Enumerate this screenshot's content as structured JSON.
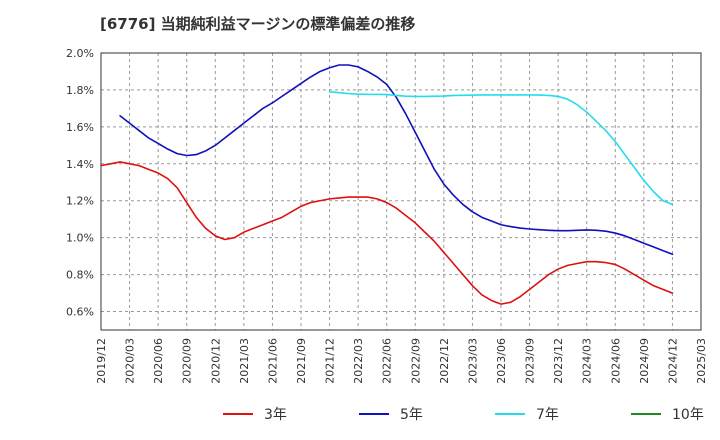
{
  "chart_data": {
    "type": "line",
    "title": "[6776]  当期純利益マージンの標準偏差の推移",
    "xlabel": "",
    "ylabel": "",
    "ylim": [
      0.5,
      2.0
    ],
    "y_ticks": [
      "0.6%",
      "0.8%",
      "1.0%",
      "1.2%",
      "1.4%",
      "1.6%",
      "1.8%",
      "2.0%"
    ],
    "y_tick_values": [
      0.6,
      0.8,
      1.0,
      1.2,
      1.4,
      1.6,
      1.8,
      2.0
    ],
    "x_ticks": [
      "2019/12",
      "2020/03",
      "2020/06",
      "2020/09",
      "2020/12",
      "2021/03",
      "2021/06",
      "2021/09",
      "2021/12",
      "2022/03",
      "2022/06",
      "2022/09",
      "2022/12",
      "2023/03",
      "2023/06",
      "2023/09",
      "2023/12",
      "2024/03",
      "2024/06",
      "2024/09",
      "2024/12",
      "2025/03"
    ],
    "grid": true,
    "legend_position": "bottom",
    "series": [
      {
        "name": "3年",
        "color": "#dd1111",
        "points": [
          [
            "2019/12",
            1.39
          ],
          [
            "2020/01",
            1.4
          ],
          [
            "2020/02",
            1.41
          ],
          [
            "2020/03",
            1.4
          ],
          [
            "2020/04",
            1.39
          ],
          [
            "2020/05",
            1.37
          ],
          [
            "2020/06",
            1.35
          ],
          [
            "2020/07",
            1.32
          ],
          [
            "2020/08",
            1.27
          ],
          [
            "2020/09",
            1.19
          ],
          [
            "2020/10",
            1.11
          ],
          [
            "2020/11",
            1.05
          ],
          [
            "2020/12",
            1.01
          ],
          [
            "2021/01",
            0.99
          ],
          [
            "2021/02",
            1.0
          ],
          [
            "2021/03",
            1.03
          ],
          [
            "2021/04",
            1.05
          ],
          [
            "2021/05",
            1.07
          ],
          [
            "2021/06",
            1.09
          ],
          [
            "2021/07",
            1.11
          ],
          [
            "2021/08",
            1.14
          ],
          [
            "2021/09",
            1.17
          ],
          [
            "2021/10",
            1.19
          ],
          [
            "2021/11",
            1.2
          ],
          [
            "2021/12",
            1.21
          ],
          [
            "2022/01",
            1.215
          ],
          [
            "2022/02",
            1.22
          ],
          [
            "2022/03",
            1.22
          ],
          [
            "2022/04",
            1.22
          ],
          [
            "2022/05",
            1.21
          ],
          [
            "2022/06",
            1.19
          ],
          [
            "2022/07",
            1.16
          ],
          [
            "2022/08",
            1.12
          ],
          [
            "2022/09",
            1.08
          ],
          [
            "2022/10",
            1.03
          ],
          [
            "2022/11",
            0.98
          ],
          [
            "2022/12",
            0.92
          ],
          [
            "2023/01",
            0.86
          ],
          [
            "2023/02",
            0.8
          ],
          [
            "2023/03",
            0.74
          ],
          [
            "2023/04",
            0.69
          ],
          [
            "2023/05",
            0.66
          ],
          [
            "2023/06",
            0.64
          ],
          [
            "2023/07",
            0.65
          ],
          [
            "2023/08",
            0.68
          ],
          [
            "2023/09",
            0.72
          ],
          [
            "2023/10",
            0.76
          ],
          [
            "2023/11",
            0.8
          ],
          [
            "2023/12",
            0.83
          ],
          [
            "2024/01",
            0.85
          ],
          [
            "2024/02",
            0.86
          ],
          [
            "2024/03",
            0.87
          ],
          [
            "2024/04",
            0.87
          ],
          [
            "2024/05",
            0.865
          ],
          [
            "2024/06",
            0.855
          ],
          [
            "2024/07",
            0.83
          ],
          [
            "2024/08",
            0.8
          ],
          [
            "2024/09",
            0.77
          ],
          [
            "2024/10",
            0.74
          ],
          [
            "2024/11",
            0.72
          ],
          [
            "2024/12",
            0.7
          ]
        ]
      },
      {
        "name": "5年",
        "color": "#1111bb",
        "points": [
          [
            "2020/02",
            1.66
          ],
          [
            "2020/03",
            1.62
          ],
          [
            "2020/04",
            1.58
          ],
          [
            "2020/05",
            1.54
          ],
          [
            "2020/06",
            1.51
          ],
          [
            "2020/07",
            1.48
          ],
          [
            "2020/08",
            1.455
          ],
          [
            "2020/09",
            1.445
          ],
          [
            "2020/10",
            1.45
          ],
          [
            "2020/11",
            1.47
          ],
          [
            "2020/12",
            1.5
          ],
          [
            "2021/01",
            1.54
          ],
          [
            "2021/02",
            1.58
          ],
          [
            "2021/03",
            1.62
          ],
          [
            "2021/04",
            1.66
          ],
          [
            "2021/05",
            1.7
          ],
          [
            "2021/06",
            1.73
          ],
          [
            "2021/07",
            1.765
          ],
          [
            "2021/08",
            1.8
          ],
          [
            "2021/09",
            1.835
          ],
          [
            "2021/10",
            1.87
          ],
          [
            "2021/11",
            1.9
          ],
          [
            "2021/12",
            1.92
          ],
          [
            "2022/01",
            1.935
          ],
          [
            "2022/02",
            1.935
          ],
          [
            "2022/03",
            1.925
          ],
          [
            "2022/04",
            1.9
          ],
          [
            "2022/05",
            1.87
          ],
          [
            "2022/06",
            1.83
          ],
          [
            "2022/07",
            1.76
          ],
          [
            "2022/08",
            1.67
          ],
          [
            "2022/09",
            1.57
          ],
          [
            "2022/10",
            1.47
          ],
          [
            "2022/11",
            1.37
          ],
          [
            "2022/12",
            1.29
          ],
          [
            "2023/01",
            1.23
          ],
          [
            "2023/02",
            1.18
          ],
          [
            "2023/03",
            1.14
          ],
          [
            "2023/04",
            1.11
          ],
          [
            "2023/05",
            1.09
          ],
          [
            "2023/06",
            1.07
          ],
          [
            "2023/07",
            1.06
          ],
          [
            "2023/08",
            1.052
          ],
          [
            "2023/09",
            1.047
          ],
          [
            "2023/10",
            1.043
          ],
          [
            "2023/11",
            1.04
          ],
          [
            "2023/12",
            1.038
          ],
          [
            "2024/01",
            1.038
          ],
          [
            "2024/02",
            1.04
          ],
          [
            "2024/03",
            1.042
          ],
          [
            "2024/04",
            1.04
          ],
          [
            "2024/05",
            1.035
          ],
          [
            "2024/06",
            1.025
          ],
          [
            "2024/07",
            1.01
          ],
          [
            "2024/08",
            0.99
          ],
          [
            "2024/09",
            0.97
          ],
          [
            "2024/10",
            0.95
          ],
          [
            "2024/11",
            0.93
          ],
          [
            "2024/12",
            0.91
          ]
        ]
      },
      {
        "name": "7年",
        "color": "#22ddee",
        "points": [
          [
            "2021/12",
            1.79
          ],
          [
            "2022/01",
            1.785
          ],
          [
            "2022/02",
            1.78
          ],
          [
            "2022/03",
            1.777
          ],
          [
            "2022/04",
            1.776
          ],
          [
            "2022/05",
            1.776
          ],
          [
            "2022/06",
            1.775
          ],
          [
            "2022/07",
            1.77
          ],
          [
            "2022/08",
            1.766
          ],
          [
            "2022/09",
            1.765
          ],
          [
            "2022/10",
            1.765
          ],
          [
            "2022/11",
            1.766
          ],
          [
            "2022/12",
            1.767
          ],
          [
            "2023/01",
            1.77
          ],
          [
            "2023/02",
            1.771
          ],
          [
            "2023/03",
            1.772
          ],
          [
            "2023/04",
            1.773
          ],
          [
            "2023/05",
            1.773
          ],
          [
            "2023/06",
            1.773
          ],
          [
            "2023/07",
            1.773
          ],
          [
            "2023/08",
            1.773
          ],
          [
            "2023/09",
            1.773
          ],
          [
            "2023/10",
            1.772
          ],
          [
            "2023/11",
            1.77
          ],
          [
            "2023/12",
            1.765
          ],
          [
            "2024/01",
            1.75
          ],
          [
            "2024/02",
            1.72
          ],
          [
            "2024/03",
            1.68
          ],
          [
            "2024/04",
            1.63
          ],
          [
            "2024/05",
            1.58
          ],
          [
            "2024/06",
            1.52
          ],
          [
            "2024/07",
            1.45
          ],
          [
            "2024/08",
            1.38
          ],
          [
            "2024/09",
            1.31
          ],
          [
            "2024/10",
            1.25
          ],
          [
            "2024/11",
            1.2
          ],
          [
            "2024/12",
            1.18
          ]
        ]
      },
      {
        "name": "10年",
        "color": "#228822",
        "points": []
      }
    ]
  }
}
